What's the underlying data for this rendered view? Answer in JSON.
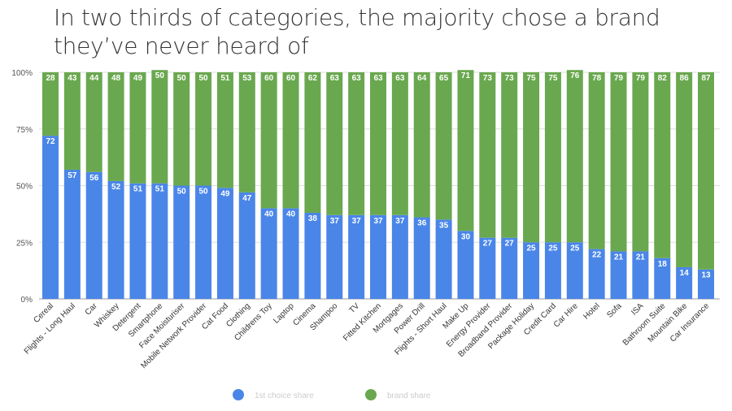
{
  "chart_data": {
    "type": "bar",
    "stacked": true,
    "title": "In two thirds of categories, the majority chose a brand they’ve never heard of",
    "xlabel": "",
    "ylabel": "",
    "ylim": [
      0,
      100
    ],
    "yticks": [
      "0%",
      "25%",
      "50%",
      "75%",
      "100%"
    ],
    "legend_position": "bottom",
    "categories": [
      "Cereal",
      "Flights - Long Haul",
      "Car",
      "Whiskey",
      "Detergent",
      "Smartphone",
      "Face Moisturiser",
      "Mobile Network Provider",
      "Cat Food",
      "Clothing",
      "Childrens Toy",
      "Laptop",
      "Cinema",
      "Shampoo",
      "TV",
      "Fitted Kitchen",
      "Mortgages",
      "Power Drill",
      "Flights - Short Haul",
      "Make Up",
      "Energy Provider",
      "Broadband Provider",
      "Package Holiday",
      "Credit Card",
      "Car Hire",
      "Hotel",
      "Sofa",
      "ISA",
      "Bathroom Suite",
      "Mountain Bike",
      "Car Insurance"
    ],
    "series": [
      {
        "name": "1st choice share",
        "color": "#4a86e8",
        "values": [
          72,
          57,
          56,
          52,
          51,
          51,
          50,
          50,
          49,
          47,
          40,
          40,
          38,
          37,
          37,
          37,
          37,
          36,
          35,
          30,
          27,
          27,
          25,
          25,
          25,
          22,
          21,
          21,
          18,
          14,
          13
        ]
      },
      {
        "name": "brand share",
        "color": "#6aa84f",
        "values": [
          28,
          43,
          44,
          48,
          49,
          50,
          50,
          50,
          51,
          53,
          60,
          60,
          62,
          63,
          63,
          63,
          63,
          64,
          65,
          71,
          73,
          73,
          75,
          75,
          76,
          78,
          79,
          79,
          82,
          86,
          87
        ]
      }
    ]
  }
}
